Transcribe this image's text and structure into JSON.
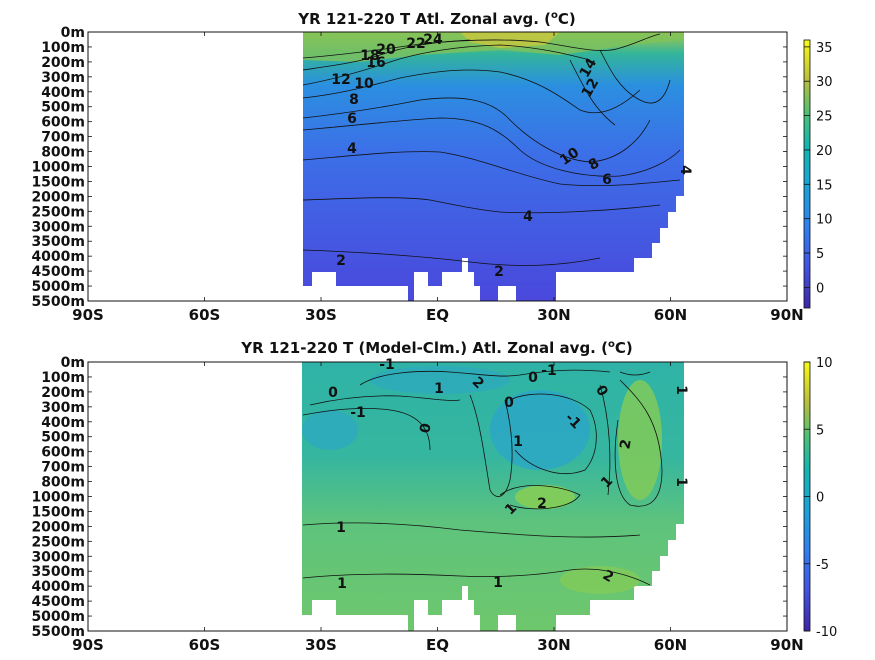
{
  "chart_data": [
    {
      "type": "heatmap",
      "title_main": "YR 121-220 T Atl. Zonal avg. (",
      "title_sup": "o",
      "title_end": "C)",
      "y_tick_labels": [
        "0m",
        "100m",
        "200m",
        "300m",
        "400m",
        "500m",
        "600m",
        "700m",
        "800m",
        "1000m",
        "1500m",
        "2000m",
        "2500m",
        "3000m",
        "3500m",
        "4000m",
        "4500m",
        "5000m",
        "5500m"
      ],
      "x_tick_labels": [
        "90S",
        "60S",
        "30S",
        "EQ",
        "30N",
        "60N",
        "90N"
      ],
      "colorbar_ticks": [
        "35",
        "30",
        "25",
        "20",
        "15",
        "10",
        "5",
        "0"
      ],
      "colorbar_range": [
        -3,
        36
      ],
      "contour_labels": [
        "24",
        "22",
        "20",
        "18",
        "16",
        "12",
        "10",
        "8",
        "6",
        "4",
        "14",
        "12",
        "10",
        "8",
        "6",
        "4",
        "4",
        "2",
        "2"
      ],
      "colors": {
        "low": "#3d26a8",
        "mid": "#14b5b0",
        "high": "#f9fb15",
        "field_top": "#b8cf3a",
        "field_mid": "#3e7fe6",
        "field_deep": "#4650e0"
      }
    },
    {
      "type": "heatmap",
      "title_main": "YR 121-220 T (Model-Clm.) Atl. Zonal avg. (",
      "title_sup": "o",
      "title_end": "C)",
      "y_tick_labels": [
        "0m",
        "100m",
        "200m",
        "300m",
        "400m",
        "500m",
        "600m",
        "700m",
        "800m",
        "1000m",
        "1500m",
        "2000m",
        "2500m",
        "3000m",
        "3500m",
        "4000m",
        "4500m",
        "5000m",
        "5500m"
      ],
      "x_tick_labels": [
        "90S",
        "60S",
        "30S",
        "EQ",
        "30N",
        "60N",
        "90N"
      ],
      "colorbar_ticks": [
        "10",
        "5",
        "0",
        "-5",
        "-10"
      ],
      "colorbar_range": [
        -10,
        10
      ],
      "contour_labels": [
        "-1",
        "0",
        "-1",
        "1",
        "2",
        "0",
        "-1",
        "0",
        "0",
        "-1",
        "1",
        "0",
        "2",
        "1",
        "1",
        "2",
        "1",
        "1",
        "1",
        "1",
        "2"
      ],
      "colors": {
        "low": "#3d26a8",
        "mid": "#14b5b0",
        "high": "#f9fb15",
        "field_base": "#3fbc8e",
        "field_light": "#7ccd5d",
        "field_blue": "#2ea7cf"
      }
    }
  ]
}
